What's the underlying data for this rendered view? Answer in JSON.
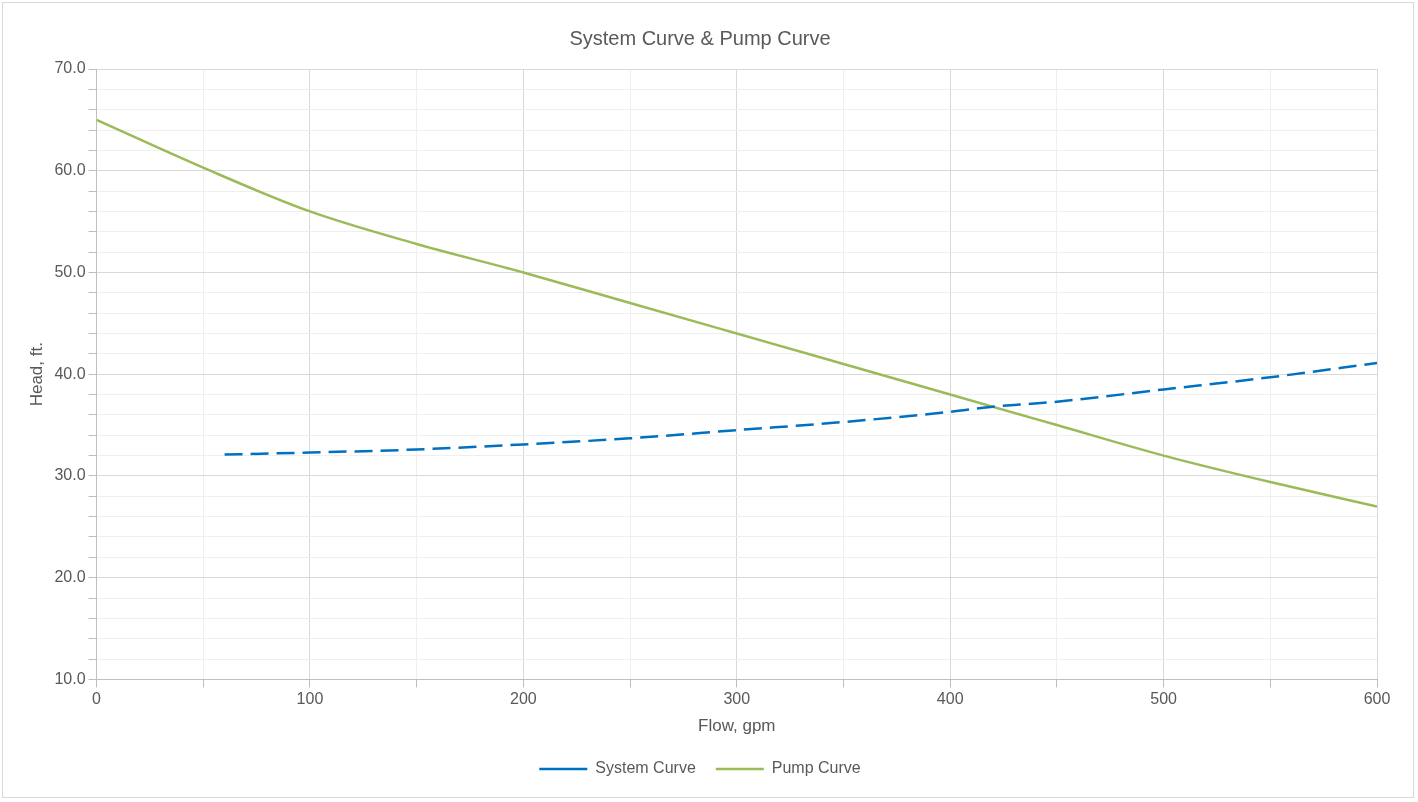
{
  "chart_data": {
    "type": "line",
    "title": "System Curve & Pump Curve",
    "xlabel": "Flow, gpm",
    "ylabel": "Head, ft.",
    "xlim": [
      0,
      600
    ],
    "xticks": [
      {
        "value": 0,
        "label": "0"
      },
      {
        "value": 50,
        "label": null
      },
      {
        "value": 100,
        "label": "100"
      },
      {
        "value": 150,
        "label": null
      },
      {
        "value": 200,
        "label": "200"
      },
      {
        "value": 250,
        "label": null
      },
      {
        "value": 300,
        "label": "300"
      },
      {
        "value": 350,
        "label": null
      },
      {
        "value": 400,
        "label": "400"
      },
      {
        "value": 450,
        "label": null
      },
      {
        "value": 500,
        "label": "500"
      },
      {
        "value": 550,
        "label": null
      },
      {
        "value": 600,
        "label": "600"
      }
    ],
    "ylim": [
      10,
      70
    ],
    "yticks": [
      {
        "value": 10,
        "label": "10.0"
      },
      {
        "value": 12,
        "label": null
      },
      {
        "value": 14,
        "label": null
      },
      {
        "value": 16,
        "label": null
      },
      {
        "value": 18,
        "label": null
      },
      {
        "value": 20,
        "label": "20.0"
      },
      {
        "value": 22,
        "label": null
      },
      {
        "value": 24,
        "label": null
      },
      {
        "value": 26,
        "label": null
      },
      {
        "value": 28,
        "label": null
      },
      {
        "value": 30,
        "label": "30.0"
      },
      {
        "value": 32,
        "label": null
      },
      {
        "value": 34,
        "label": null
      },
      {
        "value": 36,
        "label": null
      },
      {
        "value": 38,
        "label": null
      },
      {
        "value": 40,
        "label": "40.0"
      },
      {
        "value": 42,
        "label": null
      },
      {
        "value": 44,
        "label": null
      },
      {
        "value": 46,
        "label": null
      },
      {
        "value": 48,
        "label": null
      },
      {
        "value": 50,
        "label": "50.0"
      },
      {
        "value": 52,
        "label": null
      },
      {
        "value": 54,
        "label": null
      },
      {
        "value": 56,
        "label": null
      },
      {
        "value": 58,
        "label": null
      },
      {
        "value": 60,
        "label": "60.0"
      },
      {
        "value": 62,
        "label": null
      },
      {
        "value": 64,
        "label": null
      },
      {
        "value": 66,
        "label": null
      },
      {
        "value": 68,
        "label": null
      },
      {
        "value": 70,
        "label": "70.0"
      }
    ],
    "grid": true,
    "legend": "bottom",
    "marker": "none",
    "series": [
      {
        "name": "System Curve",
        "color": "#0070c0",
        "line_style": "dashed",
        "x": [
          60,
          100,
          150,
          200,
          250,
          300,
          350,
          400,
          420,
          450,
          500,
          550,
          600
        ],
        "values": [
          32.1,
          32.3,
          32.6,
          33.1,
          33.7,
          34.5,
          35.3,
          36.3,
          36.8,
          37.3,
          38.5,
          39.7,
          41.1
        ]
      },
      {
        "name": "Pump Curve",
        "color": "#9bbb59",
        "line_style": "solid",
        "x": [
          0,
          50,
          100,
          150,
          200,
          250,
          300,
          350,
          400,
          450,
          500,
          550,
          600
        ],
        "values": [
          65.0,
          60.3,
          56.0,
          52.8,
          50.0,
          47.0,
          44.0,
          41.0,
          38.0,
          35.0,
          32.0,
          29.4,
          27.0
        ]
      }
    ]
  }
}
